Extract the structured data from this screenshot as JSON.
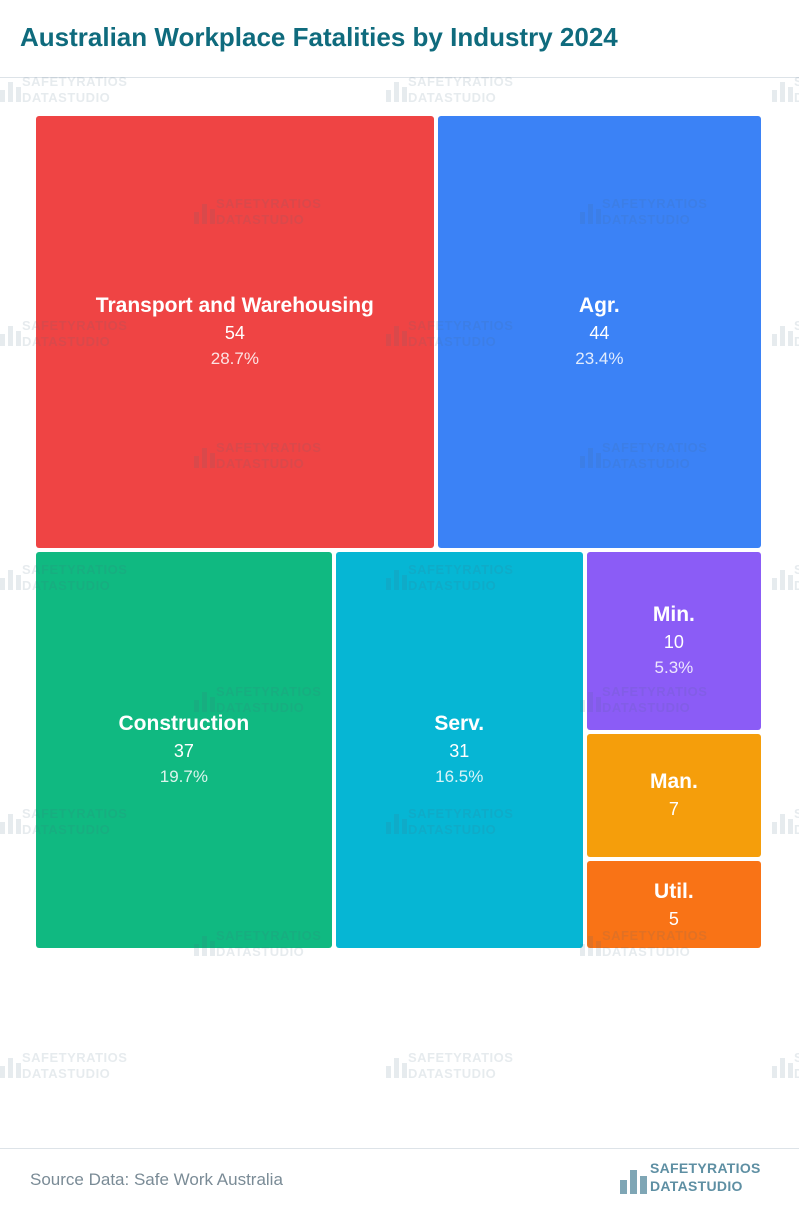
{
  "header": {
    "title": "Australian Workplace Fatalities by Industry 2024"
  },
  "footer": {
    "source": "Source Data: Safe Work Australia",
    "brand_line1": "SAFETYRATIOS",
    "brand_line2": "DATASTUDIO"
  },
  "watermark": {
    "line1": "SAFETYRATIOS",
    "line2": "DATASTUDIO"
  },
  "chart_data": {
    "type": "treemap",
    "title": "Australian Workplace Fatalities by Industry 2024",
    "items": [
      {
        "name": "Transport and Warehousing",
        "value": 54,
        "percent": "28.7%",
        "color": "#ef4444"
      },
      {
        "name": "Agr.",
        "value": 44,
        "percent": "23.4%",
        "color": "#3b82f6"
      },
      {
        "name": "Construction",
        "value": 37,
        "percent": "19.7%",
        "color": "#10b981"
      },
      {
        "name": "Serv.",
        "value": 31,
        "percent": "16.5%",
        "color": "#06b6d4"
      },
      {
        "name": "Min.",
        "value": 10,
        "percent": "5.3%",
        "color": "#8b5cf6"
      },
      {
        "name": "Man.",
        "value": 7,
        "percent": "",
        "color": "#f59e0b"
      },
      {
        "name": "Util.",
        "value": 5,
        "percent": "",
        "color": "#f97316"
      }
    ]
  }
}
